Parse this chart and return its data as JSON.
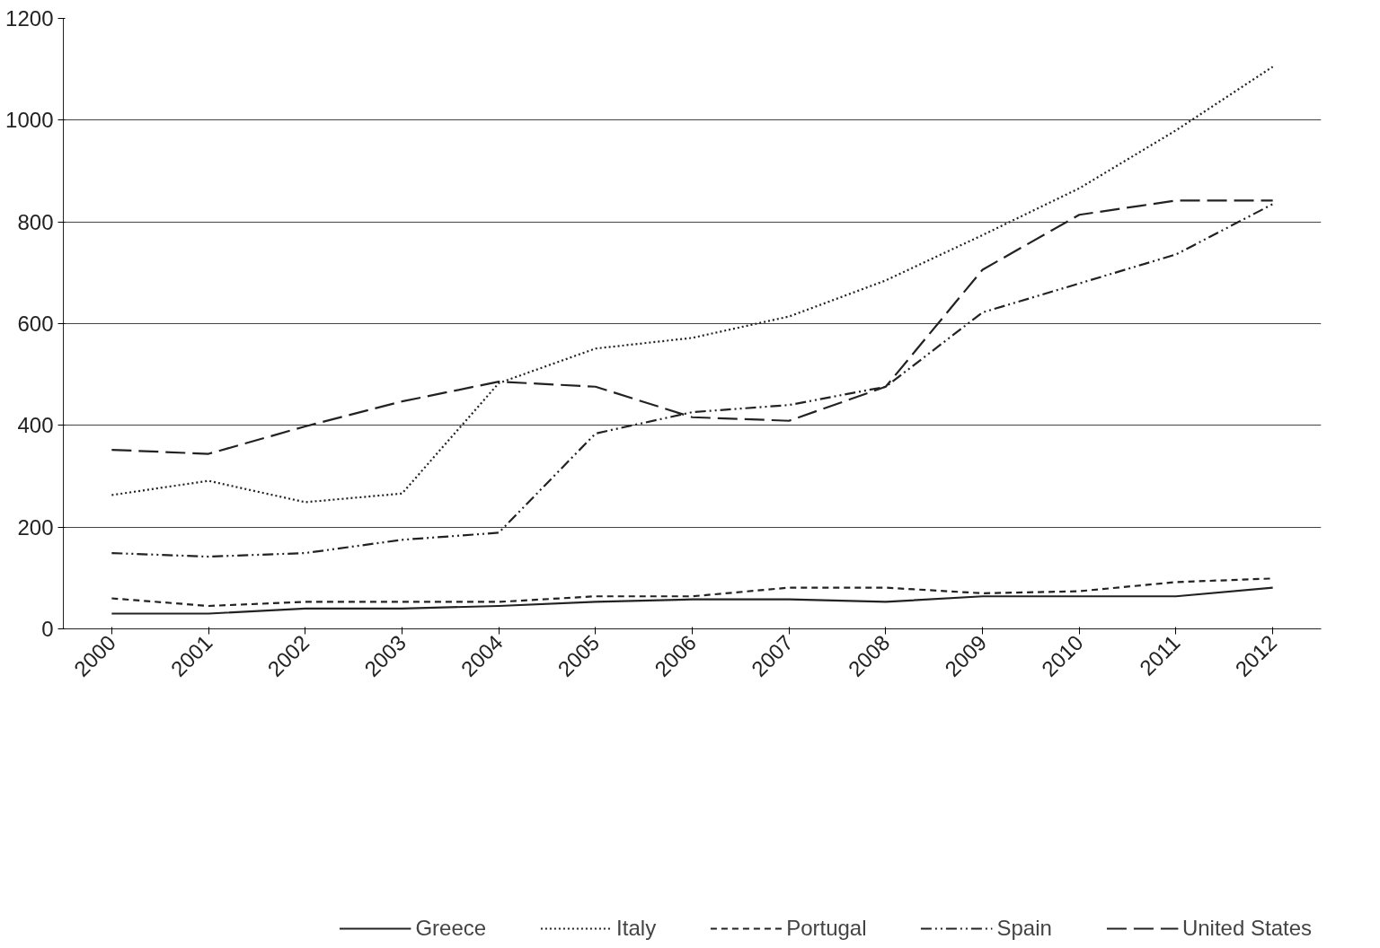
{
  "chart_data": {
    "type": "line",
    "categories": [
      "2000",
      "2001",
      "2002",
      "2003",
      "2004",
      "2005",
      "2006",
      "2007",
      "2008",
      "2009",
      "2010",
      "2011",
      "2012"
    ],
    "ylim": [
      0,
      1200
    ],
    "yticks": [
      0,
      200,
      400,
      600,
      800,
      1000,
      1200
    ],
    "grid": "y",
    "legend": "bottom",
    "marker": "none",
    "series": [
      {
        "name": "Greece",
        "color": "#222222",
        "line_style": "solid",
        "values": [
          30,
          30,
          40,
          40,
          45,
          53,
          58,
          58,
          53,
          64,
          64,
          64,
          81
        ]
      },
      {
        "name": "Italy",
        "color": "#222222",
        "line_style": "dotted",
        "values": [
          263,
          291,
          249,
          266,
          483,
          551,
          572,
          614,
          685,
          774,
          866,
          980,
          1105
        ]
      },
      {
        "name": "Portugal",
        "color": "#222222",
        "line_style": "dashed",
        "values": [
          60,
          45,
          53,
          53,
          53,
          64,
          64,
          81,
          81,
          70,
          74,
          92,
          99
        ]
      },
      {
        "name": "Spain",
        "color": "#222222",
        "line_style": "dashdot",
        "values": [
          149,
          142,
          149,
          175,
          189,
          384,
          426,
          440,
          476,
          622,
          679,
          736,
          835
        ]
      },
      {
        "name": "United States",
        "color": "#222222",
        "line_style": "longdash",
        "values": [
          352,
          344,
          398,
          447,
          486,
          476,
          416,
          409,
          476,
          706,
          814,
          842,
          842
        ]
      }
    ]
  }
}
